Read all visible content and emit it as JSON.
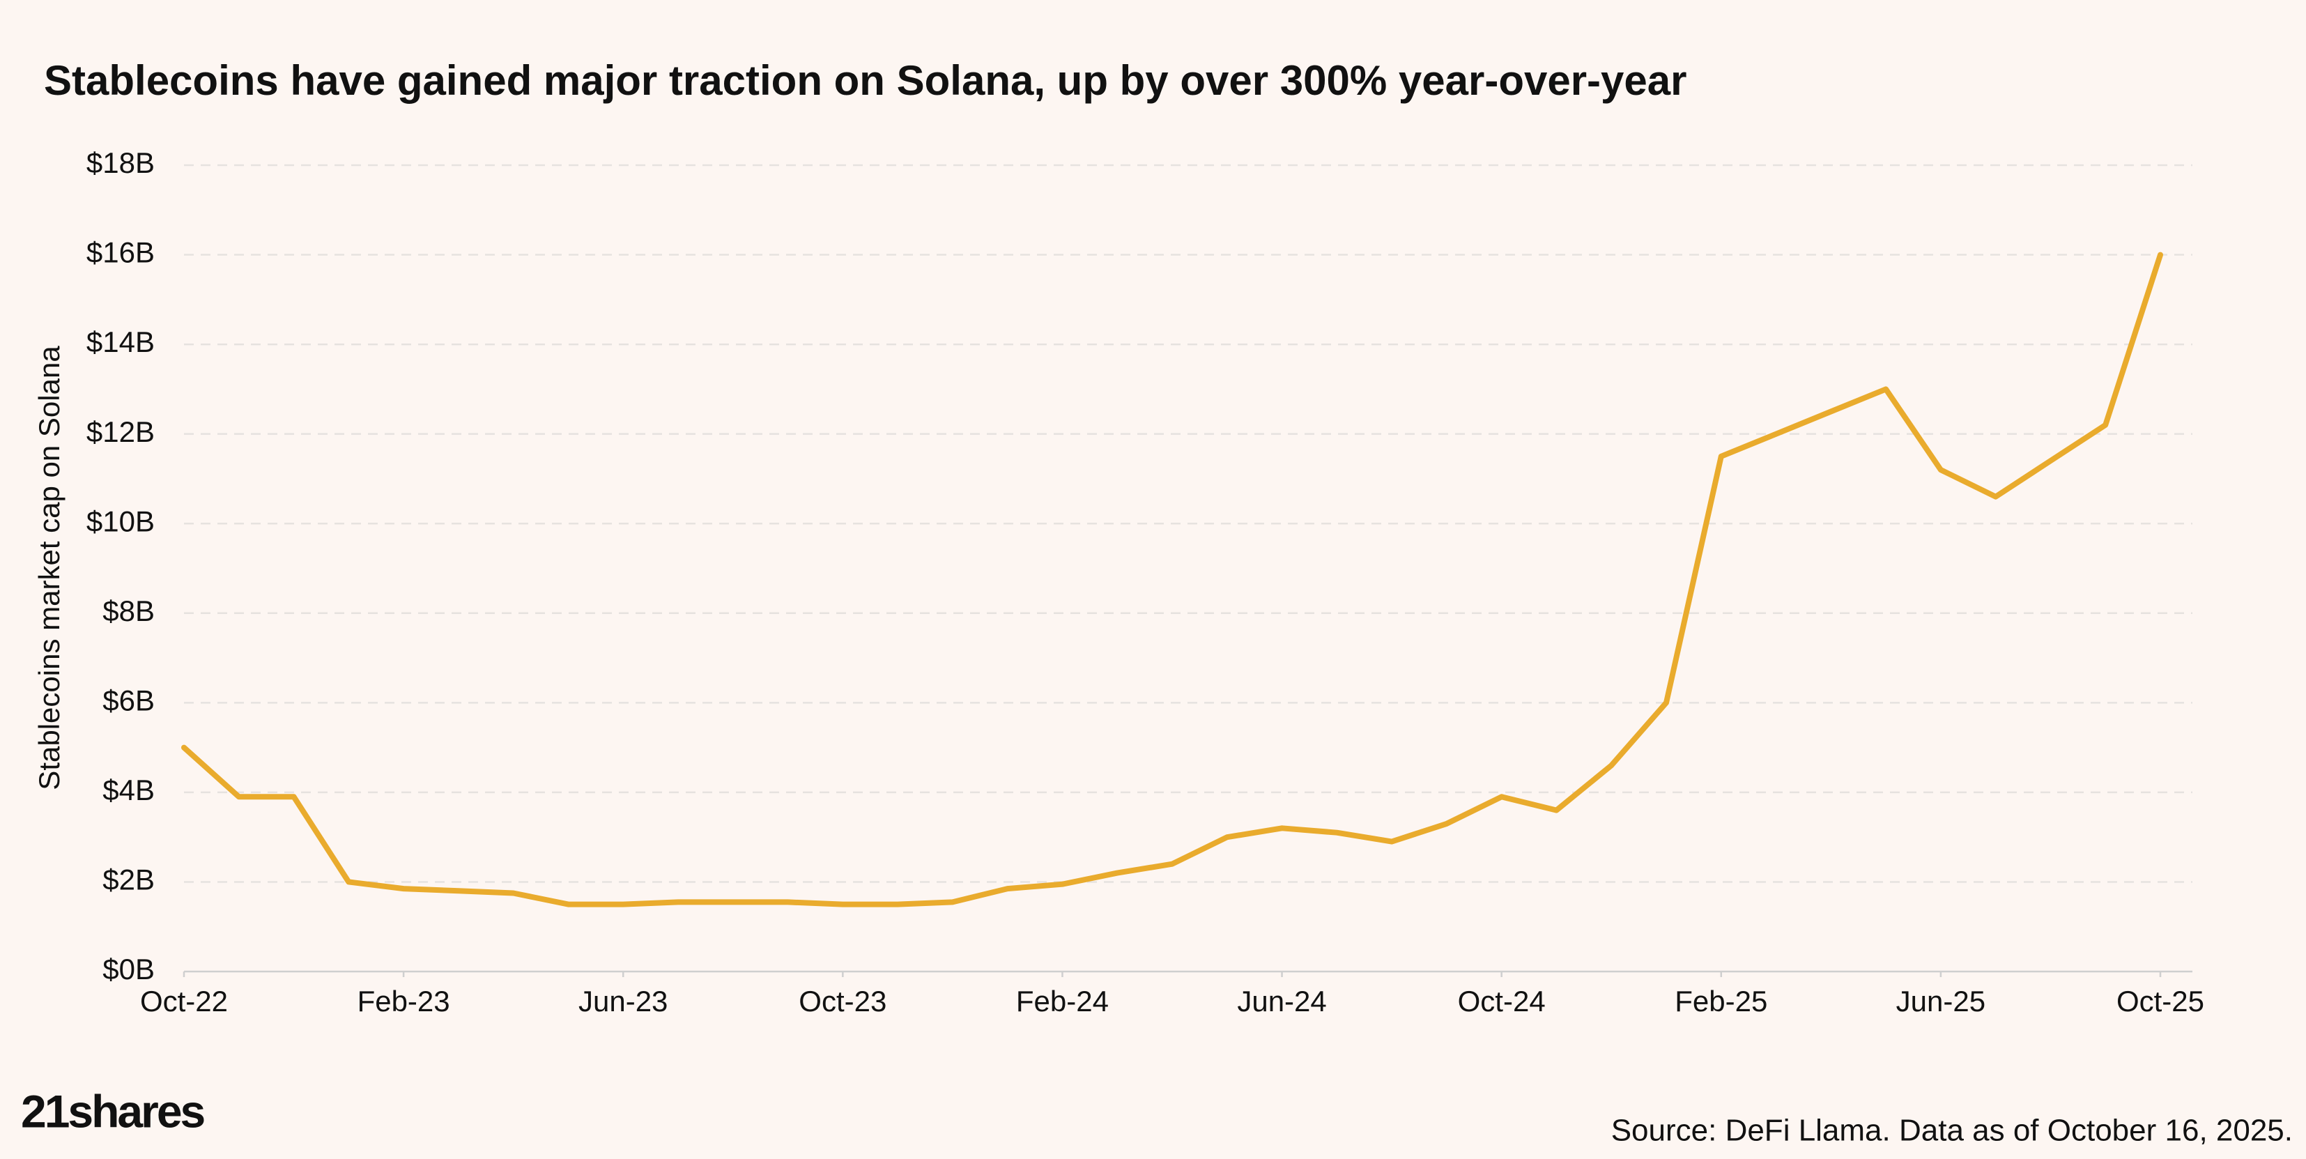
{
  "chart_data": {
    "type": "line",
    "title": "Stablecoins have gained major traction on Solana, up by over 300% year-over-year",
    "y_label": "Stablecoins market cap on Solana",
    "source": "Source: DeFi Llama. Data as of October 16, 2025.",
    "logo": "21shares",
    "x": [
      "2022-10",
      "2022-11",
      "2022-12",
      "2023-01",
      "2023-02",
      "2023-03",
      "2023-04",
      "2023-05",
      "2023-06",
      "2023-07",
      "2023-08",
      "2023-09",
      "2023-10",
      "2023-11",
      "2023-12",
      "2024-01",
      "2024-02",
      "2024-03",
      "2024-04",
      "2024-05",
      "2024-06",
      "2024-07",
      "2024-08",
      "2024-09",
      "2024-10",
      "2024-11",
      "2024-12",
      "2025-01",
      "2025-02",
      "2025-03",
      "2025-04",
      "2025-05",
      "2025-06",
      "2025-07",
      "2025-08",
      "2025-09",
      "2025-10"
    ],
    "series": [
      {
        "name": "Stablecoins market cap on Solana",
        "color": "#e9ab2d",
        "values": [
          5.0,
          3.9,
          3.9,
          2.0,
          1.85,
          1.8,
          1.75,
          1.5,
          1.5,
          1.55,
          1.55,
          1.55,
          1.5,
          1.5,
          1.55,
          1.85,
          1.95,
          2.2,
          2.4,
          3.0,
          3.2,
          3.1,
          2.9,
          3.3,
          3.9,
          3.6,
          4.6,
          6.0,
          11.5,
          12.0,
          12.5,
          13.0,
          11.2,
          10.6,
          11.4,
          12.2,
          16.0
        ]
      }
    ],
    "ylim": [
      0,
      18
    ],
    "yticks": [
      {
        "value": 0,
        "label": "$0B"
      },
      {
        "value": 2,
        "label": "$2B"
      },
      {
        "value": 4,
        "label": "$4B"
      },
      {
        "value": 6,
        "label": "$6B"
      },
      {
        "value": 8,
        "label": "$8B"
      },
      {
        "value": 10,
        "label": "$10B"
      },
      {
        "value": 12,
        "label": "$12B"
      },
      {
        "value": 14,
        "label": "$14B"
      },
      {
        "value": 16,
        "label": "$16B"
      },
      {
        "value": 18,
        "label": "$18B"
      }
    ],
    "xticks": [
      {
        "value": "2022-10",
        "label": "Oct-22"
      },
      {
        "value": "2023-02",
        "label": "Feb-23"
      },
      {
        "value": "2023-06",
        "label": "Jun-23"
      },
      {
        "value": "2023-10",
        "label": "Oct-23"
      },
      {
        "value": "2024-02",
        "label": "Feb-24"
      },
      {
        "value": "2024-06",
        "label": "Jun-24"
      },
      {
        "value": "2024-10",
        "label": "Oct-24"
      },
      {
        "value": "2025-02",
        "label": "Feb-25"
      },
      {
        "value": "2025-06",
        "label": "Jun-25"
      },
      {
        "value": "2025-10",
        "label": "Oct-25"
      }
    ],
    "grid": true
  }
}
